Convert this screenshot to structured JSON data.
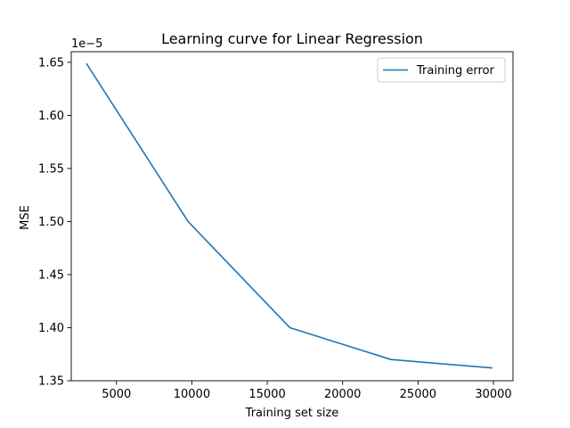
{
  "chart_data": {
    "type": "line",
    "title": "Learning curve for Linear Regression",
    "xlabel": "Training set size",
    "ylabel": "MSE",
    "y_offset_label": "1e−5",
    "xlim": [
      2000,
      31300
    ],
    "ylim": [
      1.35,
      1.66
    ],
    "x_ticks": [
      5000,
      10000,
      15000,
      20000,
      25000,
      30000
    ],
    "x_tick_labels": [
      "5000",
      "10000",
      "15000",
      "20000",
      "25000",
      "30000"
    ],
    "y_ticks": [
      1.35,
      1.4,
      1.45,
      1.5,
      1.55,
      1.6,
      1.65
    ],
    "y_tick_labels": [
      "1.35",
      "1.40",
      "1.45",
      "1.50",
      "1.55",
      "1.60",
      "1.65"
    ],
    "grid": false,
    "legend_position": "upper right",
    "series": [
      {
        "name": "Training error",
        "color": "#1f77b4",
        "x": [
          3000,
          9750,
          16500,
          23200,
          29950
        ],
        "y": [
          1.649,
          1.5,
          1.4,
          1.37,
          1.362
        ]
      }
    ]
  }
}
